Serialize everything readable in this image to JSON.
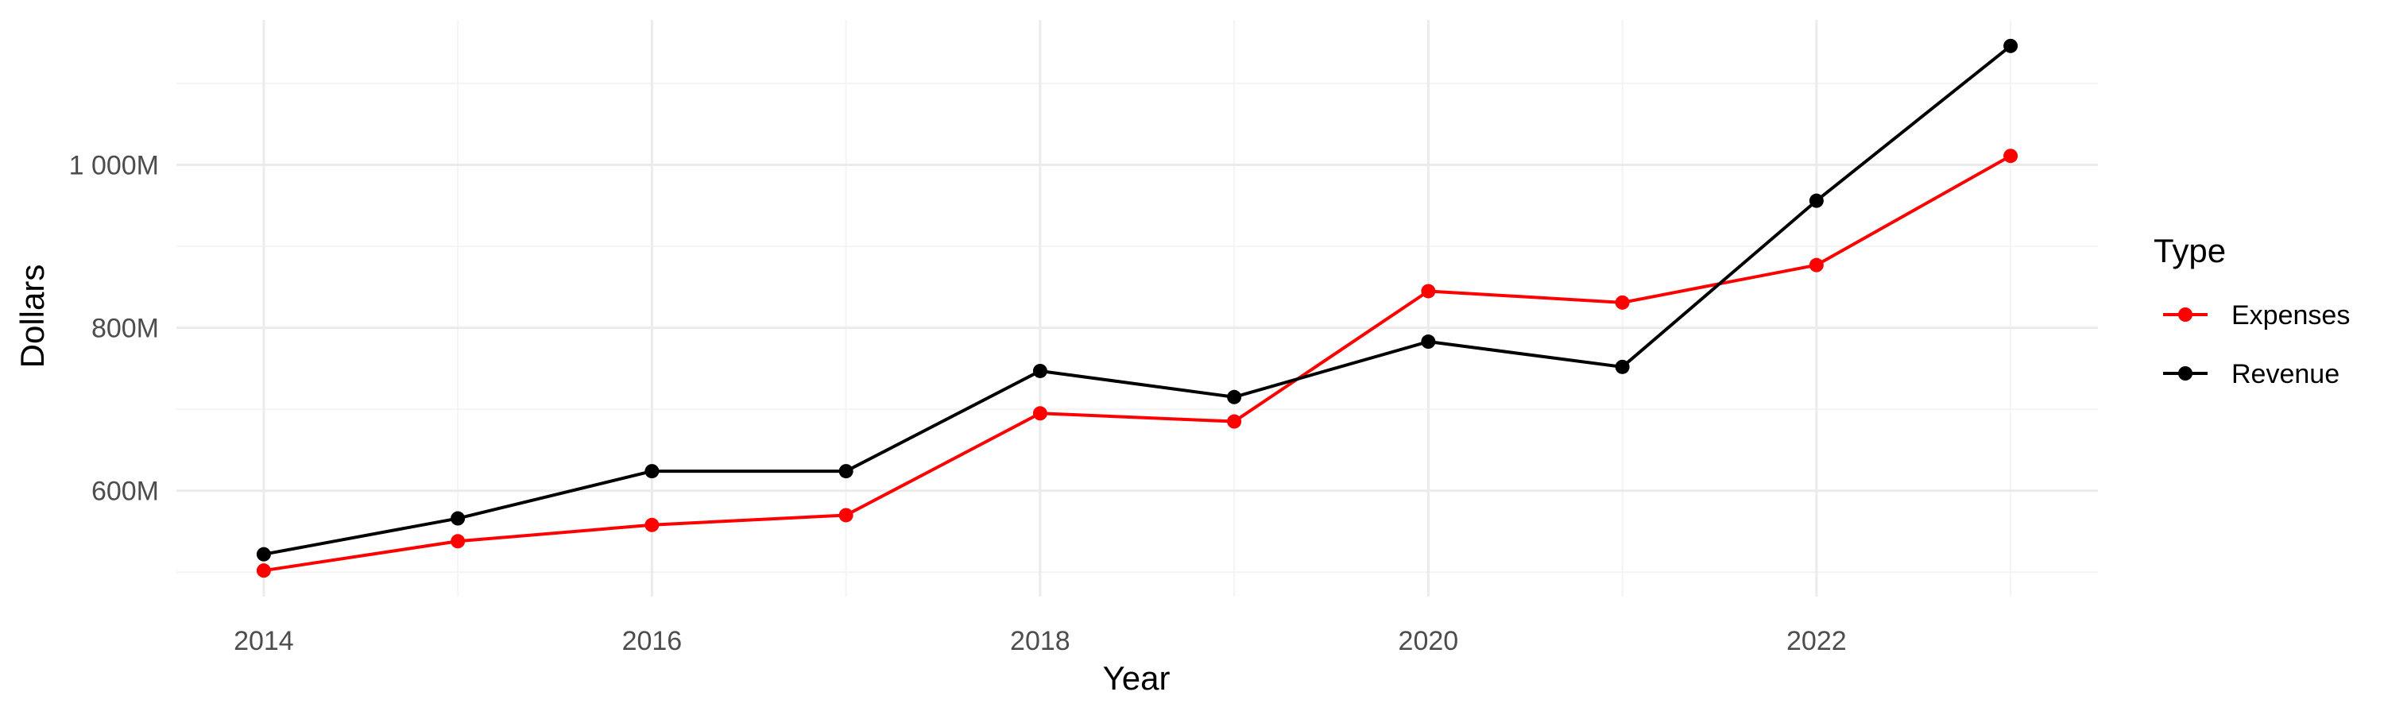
{
  "chart_data": {
    "type": "line",
    "title": "",
    "xlabel": "Year",
    "ylabel": "Dollars",
    "x": [
      2014,
      2015,
      2016,
      2017,
      2018,
      2019,
      2020,
      2021,
      2022,
      2023
    ],
    "series": [
      {
        "name": "Expenses",
        "color": "#ff0000",
        "values": [
          502,
          538,
          558,
          570,
          695,
          685,
          845,
          831,
          877,
          1011
        ]
      },
      {
        "name": "Revenue",
        "color": "#000000",
        "values": [
          522,
          566,
          624,
          624,
          747,
          715,
          783,
          752,
          956,
          1146
        ]
      }
    ],
    "xlim": [
      2013.55,
      2023.45
    ],
    "ylim": [
      470,
      1178
    ],
    "x_ticks": [
      2014,
      2016,
      2018,
      2020,
      2022
    ],
    "x_tick_labels": [
      "2014",
      "2016",
      "2018",
      "2020",
      "2022"
    ],
    "y_ticks": [
      600,
      800,
      1000
    ],
    "y_tick_labels": [
      "600M",
      "800M",
      "1 000M"
    ],
    "grid": true,
    "legend": {
      "title": "Type",
      "position": "right"
    }
  }
}
